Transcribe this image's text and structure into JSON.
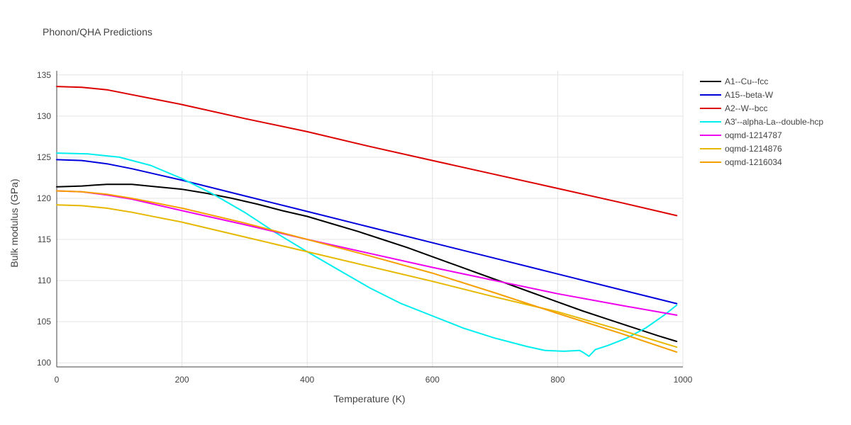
{
  "chart_data": {
    "type": "line",
    "title": "Phonon/QHA Predictions",
    "xlabel": "Temperature (K)",
    "ylabel": "Bulk modulus (GPa)",
    "xlim": [
      0,
      1000
    ],
    "ylim": [
      99.5,
      135.5
    ],
    "x_ticks": [
      0,
      200,
      400,
      600,
      800,
      1000
    ],
    "y_ticks": [
      100,
      105,
      110,
      115,
      120,
      125,
      130,
      135
    ],
    "grid": true,
    "legend_position": "top-right",
    "series": [
      {
        "name": "A1--Cu--fcc",
        "color": "#000000",
        "x": [
          0,
          40,
          80,
          120,
          160,
          200,
          240,
          280,
          320,
          360,
          400,
          440,
          480,
          520,
          560,
          600,
          640,
          680,
          720,
          760,
          800,
          840,
          880,
          920,
          960,
          990
        ],
        "y": [
          121.4,
          121.5,
          121.7,
          121.7,
          121.4,
          121.1,
          120.6,
          120.0,
          119.3,
          118.5,
          117.8,
          116.9,
          116.0,
          115.0,
          114.0,
          112.9,
          111.8,
          110.7,
          109.6,
          108.5,
          107.4,
          106.3,
          105.3,
          104.3,
          103.3,
          102.6
        ]
      },
      {
        "name": "A15--beta-W",
        "color": "#0000dd",
        "x": [
          0,
          40,
          80,
          120,
          160,
          200,
          300,
          400,
          500,
          600,
          700,
          800,
          900,
          990
        ],
        "y": [
          124.7,
          124.6,
          124.2,
          123.6,
          122.9,
          122.2,
          120.3,
          118.4,
          116.5,
          114.6,
          112.7,
          110.8,
          108.9,
          107.2
        ]
      },
      {
        "name": "A2--W--bcc",
        "color": "#dd0000",
        "x": [
          0,
          40,
          80,
          120,
          160,
          200,
          300,
          400,
          500,
          600,
          700,
          800,
          900,
          990
        ],
        "y": [
          133.6,
          133.5,
          133.2,
          132.6,
          132.0,
          131.4,
          129.7,
          128.1,
          126.3,
          124.6,
          122.9,
          121.2,
          119.5,
          117.9
        ]
      },
      {
        "name": "A3'--alpha-La--double-hcp",
        "color": "#00eeee",
        "x": [
          0,
          50,
          100,
          150,
          200,
          250,
          300,
          350,
          400,
          450,
          500,
          550,
          600,
          650,
          700,
          750,
          780,
          810,
          835,
          842,
          850,
          860,
          880,
          910,
          940,
          970,
          990
        ],
        "y": [
          125.5,
          125.4,
          125.0,
          124.0,
          122.4,
          120.5,
          118.3,
          115.8,
          113.5,
          111.3,
          109.1,
          107.2,
          105.7,
          104.2,
          103.0,
          102.0,
          101.5,
          101.4,
          101.5,
          101.2,
          100.8,
          101.6,
          102.1,
          103.0,
          104.2,
          105.8,
          107.0
        ]
      },
      {
        "name": "oqmd-1214787",
        "color": "#ee00ee",
        "x": [
          0,
          40,
          80,
          120,
          160,
          200,
          300,
          400,
          500,
          600,
          700,
          800,
          900,
          990
        ],
        "y": [
          120.9,
          120.8,
          120.4,
          119.9,
          119.2,
          118.5,
          116.8,
          115.0,
          113.3,
          111.6,
          110.0,
          108.4,
          107.0,
          105.8
        ]
      },
      {
        "name": "oqmd-1214876",
        "color": "#e6b800",
        "x": [
          0,
          40,
          80,
          120,
          160,
          200,
          300,
          400,
          500,
          600,
          700,
          800,
          900,
          990
        ],
        "y": [
          119.2,
          119.1,
          118.8,
          118.3,
          117.7,
          117.1,
          115.3,
          113.5,
          111.7,
          109.9,
          108.0,
          106.2,
          104.0,
          101.9
        ]
      },
      {
        "name": "oqmd-1216034",
        "color": "#f5a000",
        "x": [
          0,
          40,
          80,
          120,
          160,
          200,
          300,
          400,
          500,
          600,
          700,
          800,
          900,
          990
        ],
        "y": [
          120.9,
          120.8,
          120.5,
          120.0,
          119.4,
          118.8,
          117.0,
          115.0,
          113.0,
          110.9,
          108.5,
          106.0,
          103.6,
          101.3
        ]
      }
    ]
  }
}
